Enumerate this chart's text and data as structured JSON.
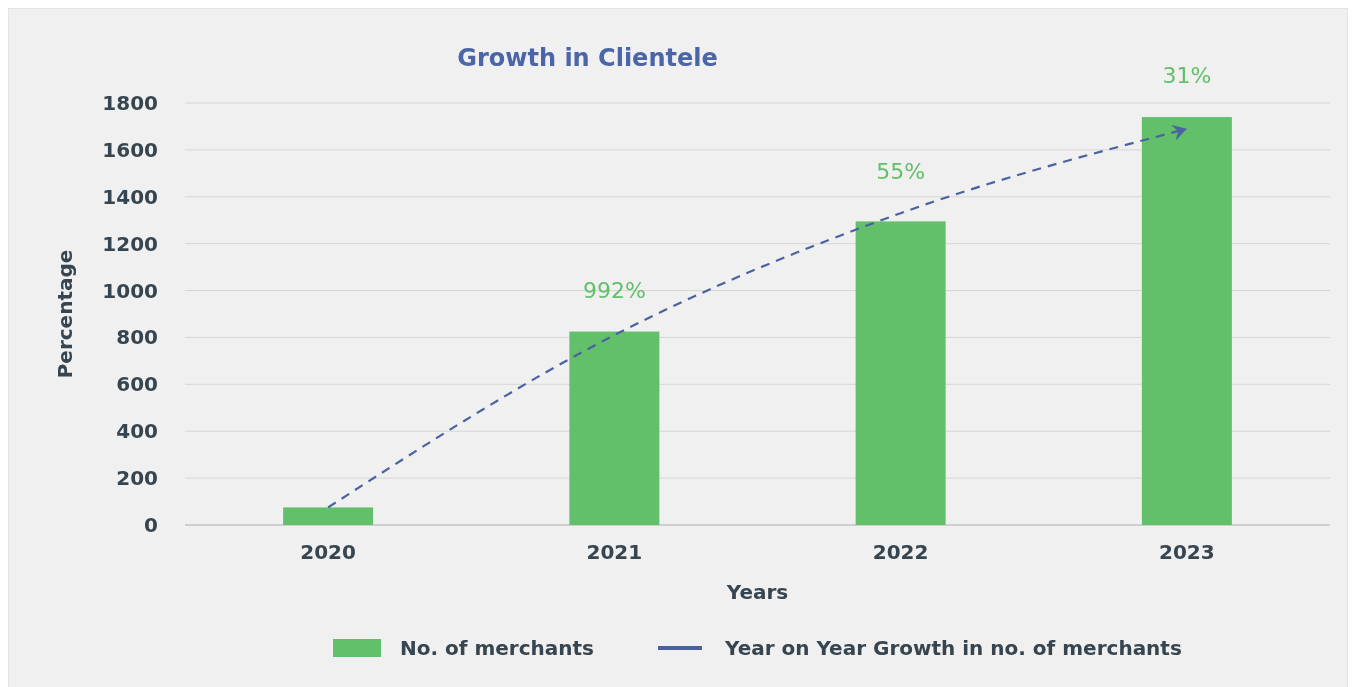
{
  "chart_data": {
    "type": "bar",
    "title": "Growth in Clientele",
    "xlabel": "Years",
    "ylabel": "Percentage",
    "categories": [
      "2020",
      "2021",
      "2022",
      "2023"
    ],
    "series": [
      {
        "name": "No. of merchants",
        "color": "#62bf6a",
        "values": [
          75,
          825,
          1295,
          1740
        ]
      },
      {
        "name": "Year on Year Growth in no. of merchants",
        "type": "line",
        "color": "#4a62a0",
        "values": [
          75,
          810,
          1330,
          1690
        ],
        "line_style": "dashed",
        "marker": "none"
      }
    ],
    "ylim": [
      0,
      1800
    ],
    "yticks": [
      0,
      200,
      400,
      600,
      800,
      1000,
      1200,
      1400,
      1600,
      1800
    ],
    "grid": "y",
    "legend": "bottom",
    "annotations": [
      {
        "text": "992%",
        "x": "2021",
        "y": 825
      },
      {
        "text": "55%",
        "x": "2022",
        "y": 1295
      },
      {
        "text": "31%",
        "x": "2023",
        "y": 1740
      }
    ]
  }
}
